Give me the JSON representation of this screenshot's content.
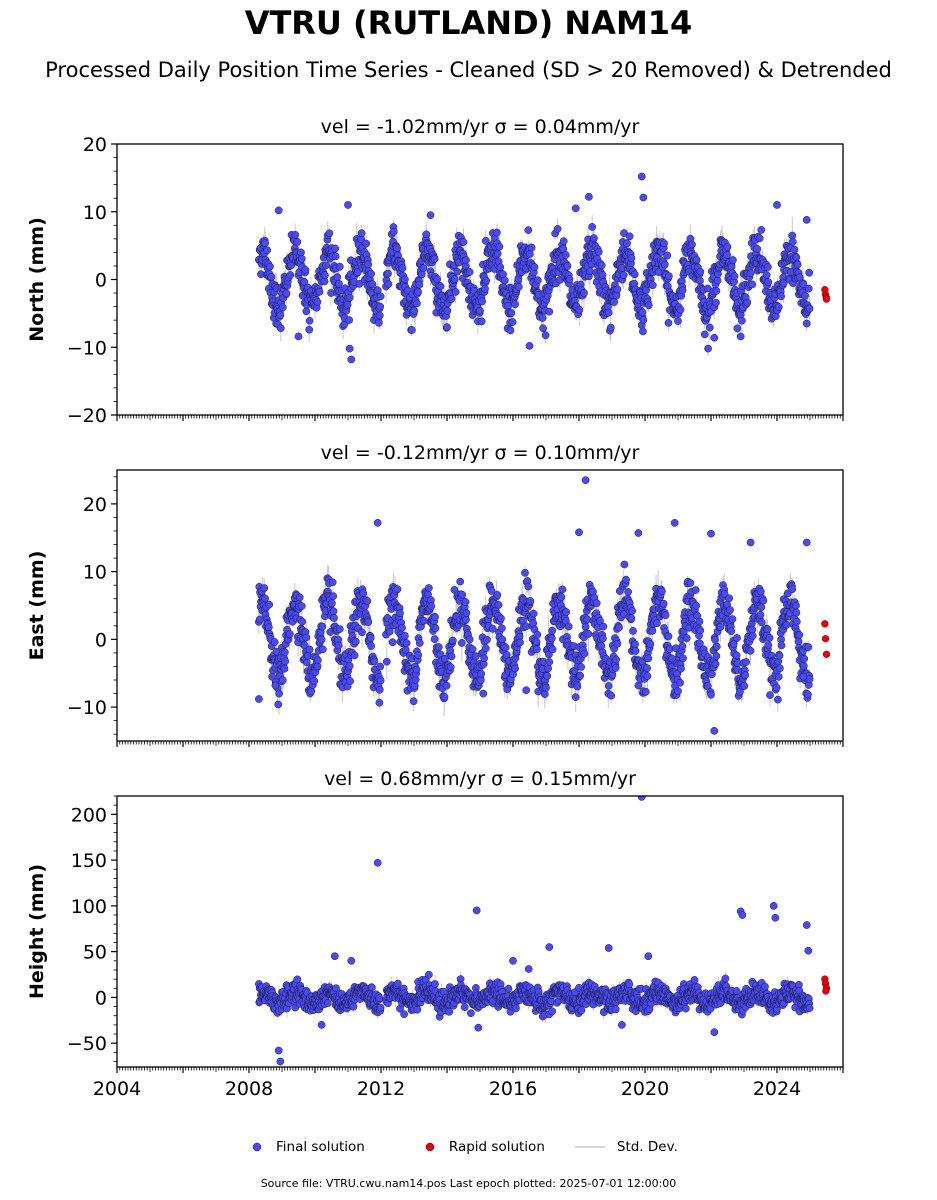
{
  "figure": {
    "title": "VTRU (RUTLAND) NAM14",
    "subtitle": "Processed Daily Position Time Series - Cleaned (SD > 20 Removed) & Detrended",
    "footer": "Source file: VTRU.cwu.nam14.pos  Last epoch plotted: 2025-07-01 12:00:00"
  },
  "legend": {
    "final_label": "Final solution",
    "rapid_label": "Rapid solution",
    "std_label": "Std. Dev."
  },
  "colors": {
    "final": "#4a4af2",
    "rapid": "#e8000b",
    "stddev": "#c8c8c8",
    "edge": "#1a1a3a"
  },
  "chart_data": [
    {
      "type": "scatter",
      "title": "vel = -1.02mm/yr   σ = 0.04mm/yr",
      "ylabel": "North (mm)",
      "xlim": [
        2004,
        2026
      ],
      "ylim": [
        -20,
        20
      ],
      "yticks": [
        -20,
        -10,
        0,
        10,
        20
      ],
      "xticks": [
        2004,
        2008,
        2012,
        2016,
        2020,
        2024
      ],
      "data_start": 2008.3,
      "data_end": 2025.0,
      "seasonal_amplitude": 4.2,
      "scatter_sd": 1.6,
      "outliers": [
        {
          "x": 2008.9,
          "y": 10.2
        },
        {
          "x": 2011.0,
          "y": 11.0
        },
        {
          "x": 2011.1,
          "y": -11.8
        },
        {
          "x": 2011.05,
          "y": -10.2
        },
        {
          "x": 2016.5,
          "y": -9.8
        },
        {
          "x": 2018.3,
          "y": 12.2
        },
        {
          "x": 2019.9,
          "y": 15.2
        },
        {
          "x": 2019.95,
          "y": 12.1
        },
        {
          "x": 2022.1,
          "y": -8.6
        },
        {
          "x": 2022.9,
          "y": -8.4
        },
        {
          "x": 2024.0,
          "y": 11.0
        },
        {
          "x": 2024.9,
          "y": 8.8
        },
        {
          "x": 2017.9,
          "y": 10.5
        },
        {
          "x": 2009.5,
          "y": -8.4
        },
        {
          "x": 2013.5,
          "y": 9.5
        }
      ],
      "rapid": [
        {
          "x": 2025.45,
          "y": -1.5
        },
        {
          "x": 2025.47,
          "y": -2.2
        },
        {
          "x": 2025.49,
          "y": -2.6
        },
        {
          "x": 2025.5,
          "y": -2.9
        }
      ]
    },
    {
      "type": "scatter",
      "title": "vel = -0.12mm/yr   σ = 0.10mm/yr",
      "ylabel": "East (mm)",
      "xlim": [
        2004,
        2026
      ],
      "ylim": [
        -15,
        25
      ],
      "yticks": [
        -10,
        0,
        10,
        20
      ],
      "xticks": [
        2004,
        2008,
        2012,
        2016,
        2020,
        2024
      ],
      "data_start": 2008.3,
      "data_end": 2025.0,
      "seasonal_amplitude": 5.5,
      "scatter_sd": 1.7,
      "outliers": [
        {
          "x": 2008.3,
          "y": -8.8
        },
        {
          "x": 2011.9,
          "y": 17.2
        },
        {
          "x": 2015.1,
          "y": -8.0
        },
        {
          "x": 2016.4,
          "y": -7.5
        },
        {
          "x": 2018.2,
          "y": 23.5
        },
        {
          "x": 2018.0,
          "y": 15.8
        },
        {
          "x": 2019.8,
          "y": 15.7
        },
        {
          "x": 2020.9,
          "y": 17.2
        },
        {
          "x": 2022.1,
          "y": -13.5
        },
        {
          "x": 2022.0,
          "y": 15.6
        },
        {
          "x": 2023.2,
          "y": 14.3
        },
        {
          "x": 2024.9,
          "y": 14.3
        },
        {
          "x": 2024.8,
          "y": -5.5
        },
        {
          "x": 2008.8,
          "y": -6.8
        }
      ],
      "rapid": [
        {
          "x": 2025.45,
          "y": 2.3
        },
        {
          "x": 2025.47,
          "y": 0.1
        },
        {
          "x": 2025.5,
          "y": -2.2
        }
      ]
    },
    {
      "type": "scatter",
      "title": "vel = 0.68mm/yr   σ = 0.15mm/yr",
      "ylabel": "Height (mm)",
      "xlim": [
        2004,
        2026
      ],
      "ylim": [
        -76,
        220
      ],
      "yticks": [
        -50,
        0,
        50,
        100,
        150,
        200
      ],
      "xticks": [
        2004,
        2008,
        2012,
        2016,
        2020,
        2024
      ],
      "data_start": 2008.3,
      "data_end": 2025.0,
      "seasonal_amplitude": 6,
      "scatter_sd": 6,
      "outliers": [
        {
          "x": 2008.9,
          "y": -58
        },
        {
          "x": 2008.95,
          "y": -70
        },
        {
          "x": 2011.9,
          "y": 147
        },
        {
          "x": 2014.9,
          "y": 95
        },
        {
          "x": 2014.95,
          "y": -33
        },
        {
          "x": 2016.0,
          "y": 40
        },
        {
          "x": 2017.1,
          "y": 55
        },
        {
          "x": 2018.9,
          "y": 54
        },
        {
          "x": 2019.9,
          "y": 219
        },
        {
          "x": 2019.3,
          "y": -30
        },
        {
          "x": 2022.1,
          "y": -38
        },
        {
          "x": 2022.9,
          "y": 94
        },
        {
          "x": 2022.95,
          "y": 90
        },
        {
          "x": 2023.9,
          "y": 100
        },
        {
          "x": 2023.95,
          "y": 87
        },
        {
          "x": 2024.9,
          "y": 79
        },
        {
          "x": 2010.2,
          "y": -30
        },
        {
          "x": 2010.6,
          "y": 45
        },
        {
          "x": 2011.1,
          "y": 40
        },
        {
          "x": 2020.1,
          "y": 45
        },
        {
          "x": 2024.95,
          "y": 51
        }
      ],
      "rapid": [
        {
          "x": 2025.45,
          "y": 20
        },
        {
          "x": 2025.47,
          "y": 15
        },
        {
          "x": 2025.5,
          "y": 10
        },
        {
          "x": 2025.48,
          "y": 7
        }
      ]
    }
  ]
}
